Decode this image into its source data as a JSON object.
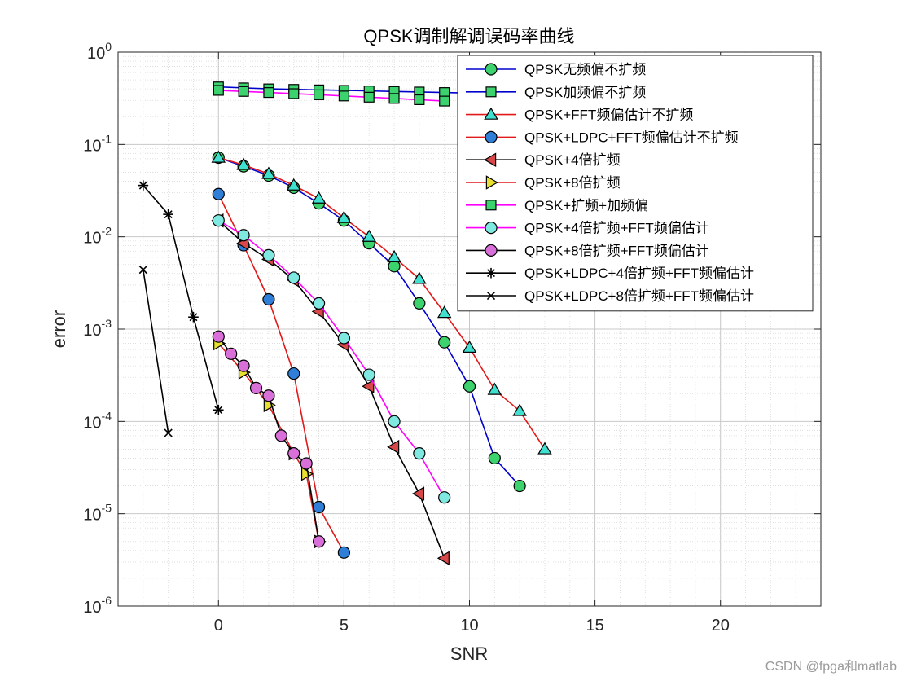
{
  "chart_data": {
    "type": "line",
    "title": "QPSK调制解调误码率曲线",
    "xlabel": "SNR",
    "ylabel": "error",
    "xlim": [
      -4,
      24
    ],
    "ylim": [
      1e-06,
      1
    ],
    "yscale": "log",
    "xticks": [
      0,
      5,
      10,
      15,
      20
    ],
    "yticks": [
      {
        "value": 1,
        "base": "10",
        "exp": "0"
      },
      {
        "value": 0.1,
        "base": "10",
        "exp": "-1"
      },
      {
        "value": 0.01,
        "base": "10",
        "exp": "-2"
      },
      {
        "value": 0.001,
        "base": "10",
        "exp": "-3"
      },
      {
        "value": 0.0001,
        "base": "10",
        "exp": "-4"
      },
      {
        "value": 1e-05,
        "base": "10",
        "exp": "-5"
      },
      {
        "value": 1e-06,
        "base": "10",
        "exp": "-6"
      }
    ],
    "grid": true,
    "minor_grid": true,
    "legend_position": "top-right",
    "series": [
      {
        "name": "QPSK无频偏不扩频",
        "color": "#0000cd",
        "marker": "circle",
        "marker_fill": "#3cd26e",
        "x": [
          0,
          1,
          2,
          3,
          4,
          5,
          6,
          7,
          8,
          9,
          10,
          11,
          12
        ],
        "y": [
          0.072,
          0.058,
          0.046,
          0.034,
          0.023,
          0.015,
          0.0085,
          0.0048,
          0.0019,
          0.00072,
          0.00024,
          4e-05,
          2e-05
        ]
      },
      {
        "name": "QPSK加频偏不扩频",
        "color": "#0000cd",
        "marker": "square",
        "marker_fill": "#3cd26e",
        "x": [
          0,
          1,
          2,
          3,
          4,
          5,
          6,
          7,
          8,
          9,
          10
        ],
        "y": [
          0.42,
          0.41,
          0.4,
          0.395,
          0.39,
          0.385,
          0.38,
          0.375,
          0.37,
          0.365,
          0.36
        ]
      },
      {
        "name": "QPSK+FFT频偏估计不扩频",
        "color": "#e11919",
        "marker": "triangle-up",
        "marker_fill": "#40e0d0",
        "x": [
          0,
          1,
          2,
          3,
          4,
          5,
          6,
          7,
          8,
          9,
          10,
          11,
          12,
          13
        ],
        "y": [
          0.072,
          0.06,
          0.048,
          0.036,
          0.026,
          0.016,
          0.01,
          0.006,
          0.0035,
          0.0015,
          0.00063,
          0.00022,
          0.00013,
          5e-05
        ]
      },
      {
        "name": "QPSK+LDPC+FFT频偏估计不扩频",
        "color": "#e11919",
        "marker": "circle",
        "marker_fill": "#2f7fd8",
        "x": [
          0,
          1,
          2,
          3,
          4,
          5
        ],
        "y": [
          0.029,
          0.0081,
          0.0021,
          0.00033,
          1.18e-05,
          3.8e-06
        ]
      },
      {
        "name": "QPSK+4倍扩频",
        "color": "#000000",
        "marker": "triangle-left",
        "marker_fill": "#d84848",
        "x": [
          0,
          1,
          2,
          3,
          4,
          5,
          6,
          7,
          8,
          9
        ],
        "y": [
          0.015,
          0.0085,
          0.0057,
          0.0034,
          0.00155,
          0.00068,
          0.00024,
          5.3e-05,
          1.65e-05,
          3.3e-06
        ]
      },
      {
        "name": "QPSK+8倍扩频",
        "color": "#e11919",
        "marker": "triangle-right",
        "marker_fill": "#e8e030",
        "x": [
          0,
          1,
          2,
          3,
          3.5,
          4
        ],
        "y": [
          0.0007,
          0.00034,
          0.00015,
          4.5e-05,
          2.7e-05,
          5e-06
        ]
      },
      {
        "name": "QPSK+扩频+加频偏",
        "color": "#ff00ff",
        "marker": "square",
        "marker_fill": "#3cd26e",
        "x": [
          0,
          1,
          2,
          3,
          4,
          5,
          6,
          7,
          8,
          9
        ],
        "y": [
          0.385,
          0.375,
          0.365,
          0.355,
          0.345,
          0.335,
          0.325,
          0.315,
          0.305,
          0.295
        ]
      },
      {
        "name": "QPSK+4倍扩频+FFT频偏估计",
        "color": "#ff00ff",
        "marker": "circle",
        "marker_fill": "#7fe8e0",
        "x": [
          0,
          1,
          2,
          3,
          4,
          5,
          6,
          7,
          8,
          9
        ],
        "y": [
          0.015,
          0.0104,
          0.0063,
          0.0036,
          0.0019,
          0.0008,
          0.00032,
          0.0001,
          4.5e-05,
          1.5e-05
        ]
      },
      {
        "name": "QPSK+8倍扩频+FFT频偏估计",
        "color": "#000000",
        "marker": "circle",
        "marker_fill": "#d96fd8",
        "x": [
          0,
          0.5,
          1,
          1.5,
          2,
          2.5,
          3,
          3.5,
          4
        ],
        "y": [
          0.00083,
          0.00054,
          0.0004,
          0.00023,
          0.00019,
          7e-05,
          4.5e-05,
          3.5e-05,
          5e-06
        ]
      },
      {
        "name": "QPSK+LDPC+4倍扩频+FFT频偏估计",
        "color": "#000000",
        "marker": "asterisk",
        "marker_fill": "none",
        "x": [
          -3,
          -2,
          -1,
          0
        ],
        "y": [
          0.036,
          0.0175,
          0.00135,
          0.000133
        ]
      },
      {
        "name": "QPSK+LDPC+8倍扩频+FFT频偏估计",
        "color": "#000000",
        "marker": "x",
        "marker_fill": "none",
        "x": [
          -3,
          -2
        ],
        "y": [
          0.0044,
          7.5e-05
        ]
      }
    ]
  },
  "watermark": "CSDN @fpga和matlab"
}
